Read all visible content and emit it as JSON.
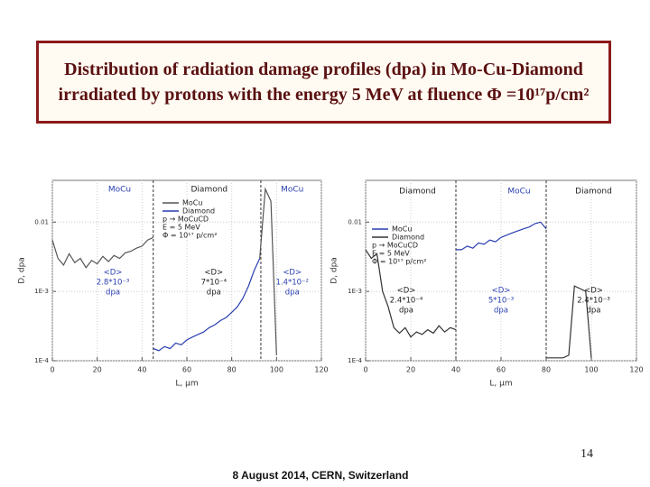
{
  "title": [
    "Distribution of radiation damage profiles (dpa) in Mo-Cu-Diamond",
    "irradiated by protons with the energy 5 MeV at fluence Φ =10¹⁷p/cm²"
  ],
  "page_number": "14",
  "footer": "8 August 2014, CERN, Switzerland",
  "chart_data": [
    {
      "type": "line",
      "step": true,
      "log_y": true,
      "grid": true,
      "x_label": "L, μm",
      "y_label": "D, dpa",
      "xlim": [
        0,
        120
      ],
      "xticks": [
        0,
        20,
        40,
        60,
        80,
        100,
        120
      ],
      "ylim": [
        0.0001,
        0.04
      ],
      "yticks": [
        {
          "value": 0.0001,
          "label": "1E-4"
        },
        {
          "value": 0.001,
          "label": "1E-3"
        },
        0.01
      ],
      "boundaries": [
        45,
        93
      ],
      "regions": [
        {
          "text": "MoCu",
          "color": "#2a3fb0"
        },
        {
          "text": "Diamond",
          "color": "#222222"
        },
        {
          "text": "MoCu",
          "color": "#2a3fb0"
        }
      ],
      "averages": [
        {
          "lines": [
            "<D>",
            "2.8*10⁻³",
            "dpa"
          ],
          "color": "#2a3fb0"
        },
        {
          "lines": [
            "<D>",
            "7*10⁻⁴",
            "dpa"
          ],
          "color": "#222222"
        },
        {
          "lines": [
            "<D>",
            "1.4*10⁻²",
            "dpa"
          ],
          "color": "#2a3fb0"
        }
      ],
      "legend_notes": [
        "p → MoCuCD",
        "E = 5 MeV",
        "Φ = 10¹⁷ p/cm²"
      ],
      "x": [
        0,
        2.5,
        5,
        7.5,
        10,
        12.5,
        15,
        17.5,
        20,
        22.5,
        25,
        27.5,
        30,
        32.5,
        35,
        37.5,
        40,
        42.5,
        45,
        47.5,
        50,
        52.5,
        55,
        57.5,
        60,
        62.5,
        65,
        67.5,
        70,
        72.5,
        75,
        77.5,
        80,
        82.5,
        85,
        87.5,
        90,
        92.5,
        95,
        97.5,
        100
      ],
      "series": [
        {
          "name": "MoCu",
          "color": "#555555",
          "values": [
            0.0055,
            0.003,
            0.0024,
            0.0035,
            0.0026,
            0.003,
            0.0022,
            0.0028,
            0.0025,
            0.0032,
            0.0027,
            0.0033,
            0.003,
            0.0036,
            0.0038,
            0.0042,
            0.0045,
            0.0055,
            0.006,
            null,
            null,
            null,
            null,
            null,
            null,
            null,
            null,
            null,
            null,
            null,
            null,
            null,
            null,
            null,
            null,
            null,
            null,
            0.003,
            0.03,
            0.02,
            0.00012
          ]
        },
        {
          "name": "Diamond",
          "color": "#2a3fb0",
          "values": [
            null,
            null,
            null,
            null,
            null,
            null,
            null,
            null,
            null,
            null,
            null,
            null,
            null,
            null,
            null,
            null,
            null,
            null,
            0.00015,
            0.00014,
            0.00016,
            0.00015,
            0.00018,
            0.00017,
            0.0002,
            0.00022,
            0.00024,
            0.00026,
            0.0003,
            0.00033,
            0.00038,
            0.00042,
            0.0005,
            0.0006,
            0.0008,
            0.0012,
            0.002,
            0.003,
            null,
            null,
            null
          ]
        }
      ]
    },
    {
      "type": "line",
      "step": true,
      "log_y": true,
      "grid": true,
      "x_label": "L, μm",
      "y_label": "D, dpa",
      "xlim": [
        0,
        120
      ],
      "xticks": [
        0,
        20,
        40,
        60,
        80,
        100,
        120
      ],
      "ylim": [
        0.0001,
        0.04
      ],
      "yticks": [
        {
          "value": 0.0001,
          "label": "1E-4"
        },
        {
          "value": 0.001,
          "label": "1E-3"
        },
        0.01
      ],
      "boundaries": [
        40,
        80
      ],
      "regions": [
        {
          "text": "Diamond",
          "color": "#222222"
        },
        {
          "text": "MoCu",
          "color": "#2a3fb0"
        },
        {
          "text": "Diamond",
          "color": "#222222"
        }
      ],
      "averages": [
        {
          "lines": [
            "<D>",
            "2.4*10⁻⁴",
            "dpa"
          ],
          "color": "#222222"
        },
        {
          "lines": [
            "<D>",
            "5*10⁻³",
            "dpa"
          ],
          "color": "#2a3fb0"
        },
        {
          "lines": [
            "<D>",
            "2.4*10⁻³",
            "dpa"
          ],
          "color": "#222222"
        }
      ],
      "legend_notes": [
        "p → MoCuCD",
        "E = 5 MeV",
        "Φ = 10¹⁷ p/cm²"
      ],
      "x": [
        0,
        2.5,
        5,
        7.5,
        10,
        12.5,
        15,
        17.5,
        20,
        22.5,
        25,
        27.5,
        30,
        32.5,
        35,
        37.5,
        40,
        42.5,
        45,
        47.5,
        50,
        52.5,
        55,
        57.5,
        60,
        62.5,
        65,
        67.5,
        70,
        72.5,
        75,
        77.5,
        80,
        82.5,
        85,
        87.5,
        90,
        92.5,
        95,
        97.5,
        100
      ],
      "series": [
        {
          "name": "MoCu",
          "color": "#2a3fb0",
          "values": [
            null,
            null,
            null,
            null,
            null,
            null,
            null,
            null,
            null,
            null,
            null,
            null,
            null,
            null,
            null,
            null,
            0.004,
            0.004,
            0.0045,
            0.0042,
            0.005,
            0.0048,
            0.0055,
            0.0052,
            0.006,
            0.0065,
            0.007,
            0.0075,
            0.008,
            0.0085,
            0.0095,
            0.01,
            0.008,
            null,
            null,
            null,
            null,
            null,
            null,
            null,
            null
          ]
        },
        {
          "name": "Diamond",
          "color": "#333333",
          "values": [
            0.004,
            0.003,
            0.0035,
            0.001,
            0.0006,
            0.0003,
            0.00025,
            0.0003,
            0.00022,
            0.00026,
            0.00024,
            0.00028,
            0.00025,
            0.00032,
            0.00026,
            0.0003,
            0.00028,
            null,
            null,
            null,
            null,
            null,
            null,
            null,
            null,
            null,
            null,
            null,
            null,
            null,
            null,
            null,
            0.00011,
            0.00011,
            0.00011,
            0.00011,
            0.00012,
            0.0012,
            0.0011,
            0.001,
            0.00011
          ]
        }
      ]
    }
  ]
}
